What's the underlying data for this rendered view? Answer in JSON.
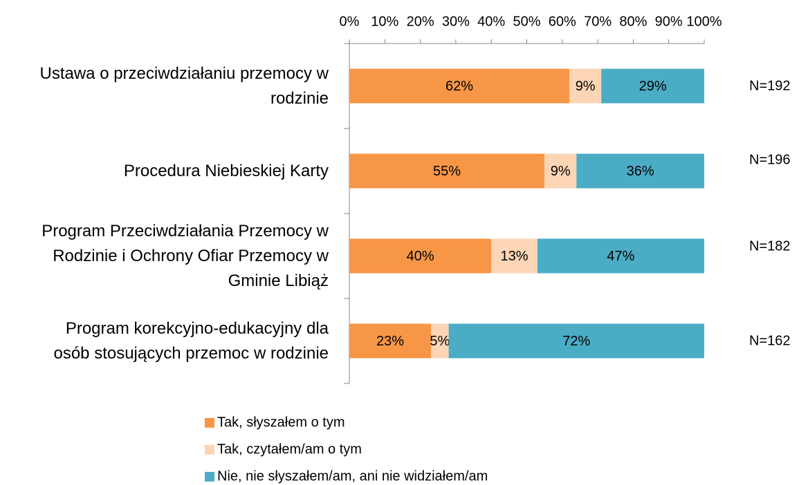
{
  "chart_data": {
    "type": "stacked-bar-horizontal",
    "categories": [
      "Ustawa o przeciwdziałaniu przemocy w rodzinie",
      "Procedura Niebieskiej Karty",
      "Program Przeciwdziałania Przemocy w Rodzinie i Ochrony Ofiar Przemocy w Gminie Libiąż",
      "Program korekcyjno-edukacyjny dla osób stosujących przemoc w rodzinie"
    ],
    "series": [
      {
        "name": "Tak, słyszałem o tym",
        "color": "#f79646",
        "values": [
          62,
          55,
          40,
          23
        ],
        "value_labels": [
          "62%",
          "55%",
          "40%",
          "23%"
        ]
      },
      {
        "name": "Tak, czytałem/am o tym",
        "color": "#fcd5b5",
        "values": [
          9,
          9,
          13,
          5
        ],
        "value_labels": [
          "9%",
          "9%",
          "13%",
          "5%"
        ]
      },
      {
        "name": "Nie, nie słyszałem/am, ani nie widziałem/am",
        "color": "#4bacc6",
        "values": [
          29,
          36,
          47,
          72
        ],
        "value_labels": [
          "29%",
          "36%",
          "47%",
          "72%"
        ]
      }
    ],
    "annotations": [
      "N=192",
      "N=196",
      "N=182",
      "N=162"
    ],
    "xlim": [
      0,
      100
    ],
    "xticks": [
      {
        "value": 0,
        "label": "0%"
      },
      {
        "value": 10,
        "label": "10%"
      },
      {
        "value": 20,
        "label": "20%"
      },
      {
        "value": 30,
        "label": "30%"
      },
      {
        "value": 40,
        "label": "40%"
      },
      {
        "value": 50,
        "label": "50%"
      },
      {
        "value": 60,
        "label": "60%"
      },
      {
        "value": 70,
        "label": "70%"
      },
      {
        "value": 80,
        "label": "80%"
      },
      {
        "value": 90,
        "label": "90%"
      },
      {
        "value": 100,
        "label": "100%"
      }
    ],
    "legend": "bottom"
  }
}
